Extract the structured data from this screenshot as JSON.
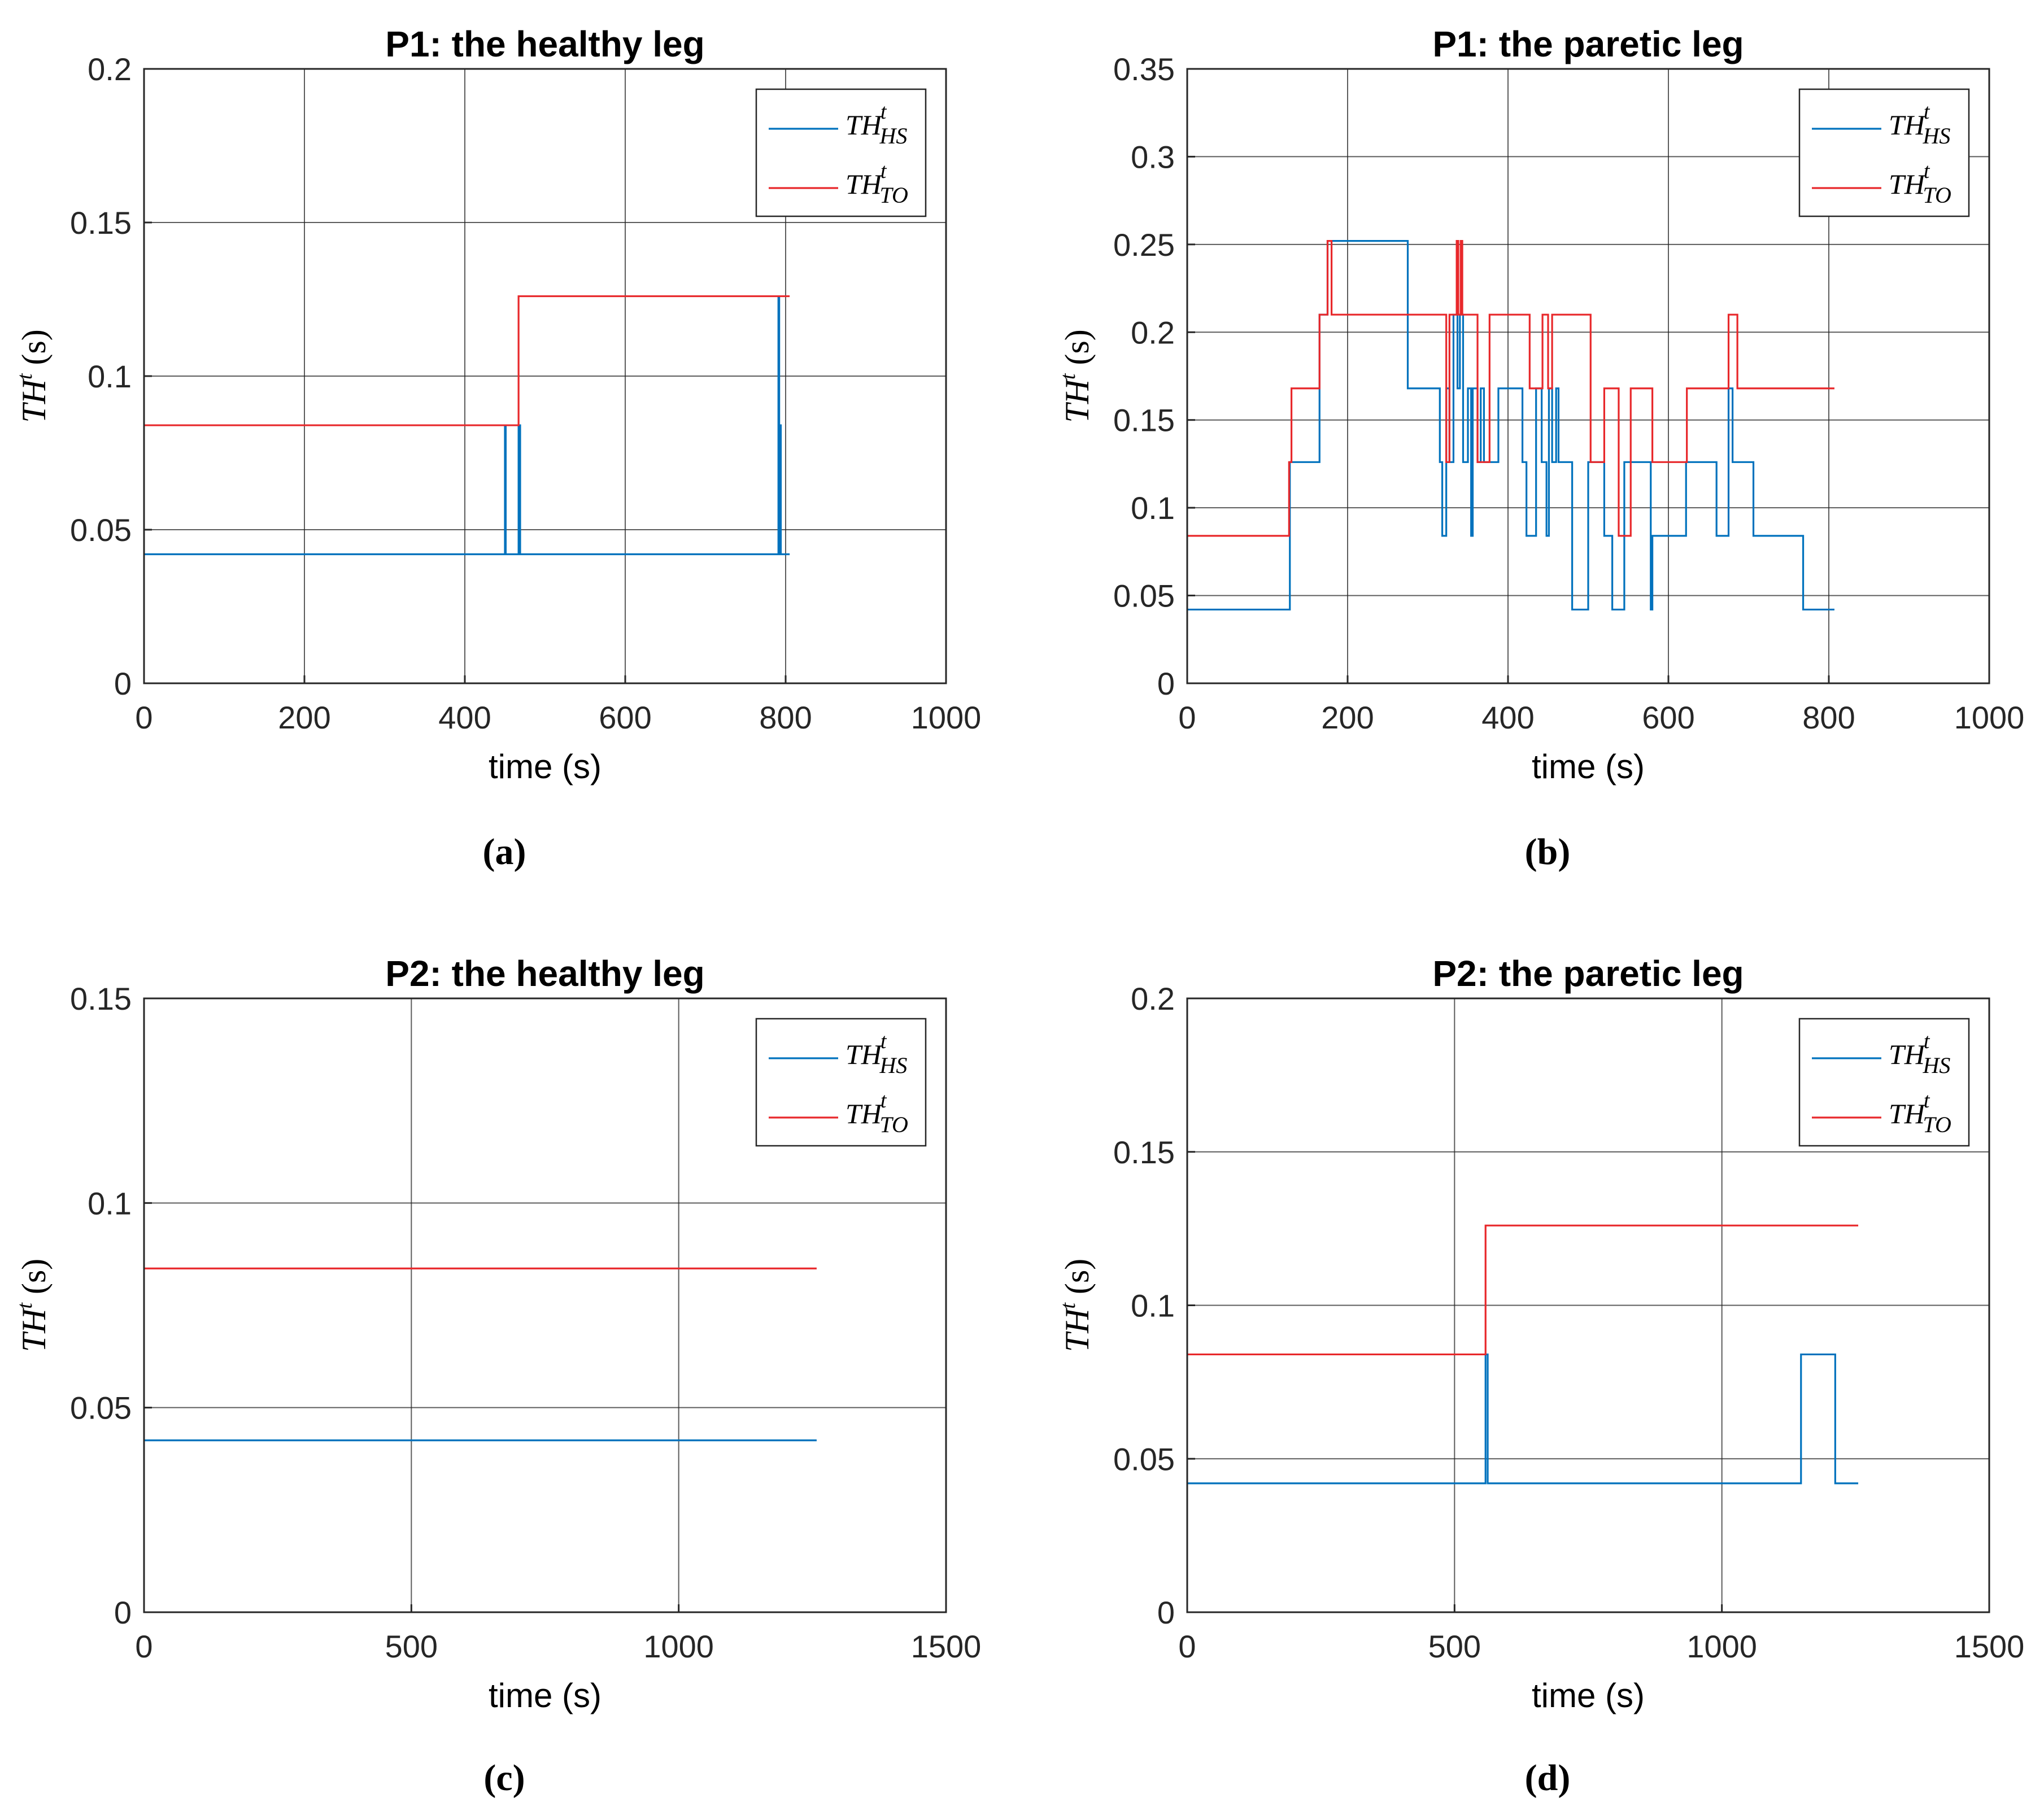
{
  "figure": {
    "captions": [
      "(a)",
      "(b)",
      "(c)",
      "(d)"
    ]
  },
  "chart_data": [
    {
      "type": "line",
      "title": "P1: the healthy leg",
      "xlabel": "time (s)",
      "ylabel": "TH",
      "ylabel_sup": "t",
      "ylabel_unit": "(s)",
      "xlim": [
        0,
        1000
      ],
      "ylim": [
        0,
        0.2
      ],
      "xticks": [
        0,
        200,
        400,
        600,
        800,
        1000
      ],
      "yticks": [
        0,
        0.05,
        0.1,
        0.15,
        0.2
      ],
      "xtick_labels": [
        "0",
        "200",
        "400",
        "600",
        "800",
        "1000"
      ],
      "ytick_labels": [
        "0",
        "0.05",
        "0.1",
        "0.15",
        "0.2"
      ],
      "grid": true,
      "legend_position": "top-right",
      "series": [
        {
          "name_base": "TH",
          "name_sup": "t",
          "name_sub": "HS",
          "color": "#0072BD",
          "points": [
            [
              0,
              0.042
            ],
            [
              450,
              0.042
            ],
            [
              450,
              0.084
            ],
            [
              451,
              0.084
            ],
            [
              451,
              0.042
            ],
            [
              467,
              0.042
            ],
            [
              467,
              0.084
            ],
            [
              469,
              0.084
            ],
            [
              469,
              0.042
            ],
            [
              791,
              0.042
            ],
            [
              791,
              0.126
            ],
            [
              792,
              0.126
            ],
            [
              792,
              0.042
            ],
            [
              793,
              0.042
            ],
            [
              793,
              0.084
            ],
            [
              794,
              0.084
            ],
            [
              794,
              0.042
            ],
            [
              805,
              0.042
            ]
          ]
        },
        {
          "name_base": "TH",
          "name_sup": "t",
          "name_sub": "TO",
          "color": "#E8282B",
          "points": [
            [
              0,
              0.084
            ],
            [
              467,
              0.084
            ],
            [
              467,
              0.126
            ],
            [
              805,
              0.126
            ]
          ]
        }
      ]
    },
    {
      "type": "line",
      "title": "P1: the paretic leg",
      "xlabel": "time (s)",
      "ylabel": "TH",
      "ylabel_sup": "t",
      "ylabel_unit": "(s)",
      "xlim": [
        0,
        1000
      ],
      "ylim": [
        0,
        0.35
      ],
      "xticks": [
        0,
        200,
        400,
        600,
        800,
        1000
      ],
      "yticks": [
        0,
        0.05,
        0.1,
        0.15,
        0.2,
        0.25,
        0.3,
        0.35
      ],
      "xtick_labels": [
        "0",
        "200",
        "400",
        "600",
        "800",
        "1000"
      ],
      "ytick_labels": [
        "0",
        "0.05",
        "0.1",
        "0.15",
        "0.2",
        "0.25",
        "0.3",
        "0.35"
      ],
      "grid": true,
      "legend_position": "top-right",
      "series": [
        {
          "name_base": "TH",
          "name_sup": "t",
          "name_sub": "HS",
          "color": "#0072BD",
          "points": [
            [
              0,
              0.042
            ],
            [
              128,
              0.042
            ],
            [
              128,
              0.126
            ],
            [
              165,
              0.126
            ],
            [
              165,
              0.21
            ],
            [
              175,
              0.21
            ],
            [
              175,
              0.252
            ],
            [
              275,
              0.252
            ],
            [
              275,
              0.168
            ],
            [
              315,
              0.168
            ],
            [
              315,
              0.126
            ],
            [
              318,
              0.126
            ],
            [
              318,
              0.084
            ],
            [
              323,
              0.084
            ],
            [
              323,
              0.168
            ],
            [
              327,
              0.168
            ],
            [
              327,
              0.126
            ],
            [
              332,
              0.126
            ],
            [
              332,
              0.21
            ],
            [
              337,
              0.21
            ],
            [
              337,
              0.168
            ],
            [
              340,
              0.168
            ],
            [
              340,
              0.21
            ],
            [
              344,
              0.21
            ],
            [
              344,
              0.126
            ],
            [
              350,
              0.126
            ],
            [
              350,
              0.168
            ],
            [
              354,
              0.168
            ],
            [
              354,
              0.084
            ],
            [
              356,
              0.084
            ],
            [
              356,
              0.168
            ],
            [
              362,
              0.168
            ],
            [
              362,
              0.126
            ],
            [
              366,
              0.126
            ],
            [
              366,
              0.168
            ],
            [
              370,
              0.168
            ],
            [
              370,
              0.126
            ],
            [
              388,
              0.126
            ],
            [
              388,
              0.168
            ],
            [
              418,
              0.168
            ],
            [
              418,
              0.126
            ],
            [
              423,
              0.126
            ],
            [
              423,
              0.084
            ],
            [
              435,
              0.084
            ],
            [
              435,
              0.168
            ],
            [
              442,
              0.168
            ],
            [
              442,
              0.126
            ],
            [
              448,
              0.126
            ],
            [
              448,
              0.084
            ],
            [
              451,
              0.084
            ],
            [
              451,
              0.168
            ],
            [
              455,
              0.168
            ],
            [
              455,
              0.126
            ],
            [
              460,
              0.126
            ],
            [
              460,
              0.168
            ],
            [
              463,
              0.168
            ],
            [
              463,
              0.126
            ],
            [
              480,
              0.126
            ],
            [
              480,
              0.042
            ],
            [
              500,
              0.042
            ],
            [
              500,
              0.126
            ],
            [
              520,
              0.126
            ],
            [
              520,
              0.084
            ],
            [
              530,
              0.084
            ],
            [
              530,
              0.042
            ],
            [
              545,
              0.042
            ],
            [
              545,
              0.126
            ],
            [
              578,
              0.126
            ],
            [
              578,
              0.042
            ],
            [
              580,
              0.042
            ],
            [
              580,
              0.084
            ],
            [
              622,
              0.084
            ],
            [
              622,
              0.126
            ],
            [
              660,
              0.126
            ],
            [
              660,
              0.084
            ],
            [
              675,
              0.084
            ],
            [
              675,
              0.168
            ],
            [
              680,
              0.168
            ],
            [
              680,
              0.126
            ],
            [
              706,
              0.126
            ],
            [
              706,
              0.084
            ],
            [
              768,
              0.084
            ],
            [
              768,
              0.042
            ],
            [
              807,
              0.042
            ]
          ]
        },
        {
          "name_base": "TH",
          "name_sup": "t",
          "name_sub": "TO",
          "color": "#E8282B",
          "points": [
            [
              0,
              0.084
            ],
            [
              127,
              0.084
            ],
            [
              127,
              0.126
            ],
            [
              130,
              0.126
            ],
            [
              130,
              0.168
            ],
            [
              165,
              0.168
            ],
            [
              165,
              0.21
            ],
            [
              175,
              0.21
            ],
            [
              175,
              0.252
            ],
            [
              180,
              0.252
            ],
            [
              180,
              0.21
            ],
            [
              323,
              0.21
            ],
            [
              323,
              0.126
            ],
            [
              327,
              0.126
            ],
            [
              327,
              0.21
            ],
            [
              336,
              0.21
            ],
            [
              336,
              0.252
            ],
            [
              338,
              0.252
            ],
            [
              338,
              0.21
            ],
            [
              341,
              0.21
            ],
            [
              341,
              0.252
            ],
            [
              343,
              0.252
            ],
            [
              343,
              0.21
            ],
            [
              362,
              0.21
            ],
            [
              362,
              0.126
            ],
            [
              377,
              0.126
            ],
            [
              377,
              0.21
            ],
            [
              427,
              0.21
            ],
            [
              427,
              0.168
            ],
            [
              443,
              0.168
            ],
            [
              443,
              0.21
            ],
            [
              450,
              0.21
            ],
            [
              450,
              0.168
            ],
            [
              455,
              0.168
            ],
            [
              455,
              0.21
            ],
            [
              503,
              0.21
            ],
            [
              503,
              0.126
            ],
            [
              520,
              0.126
            ],
            [
              520,
              0.168
            ],
            [
              538,
              0.168
            ],
            [
              538,
              0.084
            ],
            [
              553,
              0.084
            ],
            [
              553,
              0.168
            ],
            [
              580,
              0.168
            ],
            [
              580,
              0.126
            ],
            [
              623,
              0.126
            ],
            [
              623,
              0.168
            ],
            [
              675,
              0.168
            ],
            [
              675,
              0.21
            ],
            [
              686,
              0.21
            ],
            [
              686,
              0.168
            ],
            [
              807,
              0.168
            ]
          ]
        }
      ]
    },
    {
      "type": "line",
      "title": "P2: the healthy leg",
      "xlabel": "time (s)",
      "ylabel": "TH",
      "ylabel_sup": "t",
      "ylabel_unit": "(s)",
      "xlim": [
        0,
        1500
      ],
      "ylim": [
        0,
        0.15
      ],
      "xticks": [
        0,
        500,
        1000,
        1500
      ],
      "yticks": [
        0,
        0.05,
        0.1,
        0.15
      ],
      "xtick_labels": [
        "0",
        "500",
        "1000",
        "1500"
      ],
      "ytick_labels": [
        "0",
        "0.05",
        "0.1",
        "0.15"
      ],
      "grid": true,
      "legend_position": "top-right",
      "series": [
        {
          "name_base": "TH",
          "name_sup": "t",
          "name_sub": "HS",
          "color": "#0072BD",
          "points": [
            [
              0,
              0.042
            ],
            [
              1258,
              0.042
            ]
          ]
        },
        {
          "name_base": "TH",
          "name_sup": "t",
          "name_sub": "TO",
          "color": "#E8282B",
          "points": [
            [
              0,
              0.084
            ],
            [
              1258,
              0.084
            ]
          ]
        }
      ]
    },
    {
      "type": "line",
      "title": "P2: the paretic leg",
      "xlabel": "time (s)",
      "ylabel": "TH",
      "ylabel_sup": "t",
      "ylabel_unit": "(s)",
      "xlim": [
        0,
        1500
      ],
      "ylim": [
        0,
        0.2
      ],
      "xticks": [
        0,
        500,
        1000,
        1500
      ],
      "yticks": [
        0,
        0.05,
        0.1,
        0.15,
        0.2
      ],
      "xtick_labels": [
        "0",
        "500",
        "1000",
        "1500"
      ],
      "ytick_labels": [
        "0",
        "0.05",
        "0.1",
        "0.15",
        "0.2"
      ],
      "grid": true,
      "legend_position": "top-right",
      "series": [
        {
          "name_base": "TH",
          "name_sup": "t",
          "name_sub": "HS",
          "color": "#0072BD",
          "points": [
            [
              0,
              0.042
            ],
            [
              558,
              0.042
            ],
            [
              558,
              0.084
            ],
            [
              562,
              0.084
            ],
            [
              562,
              0.042
            ],
            [
              1148,
              0.042
            ],
            [
              1148,
              0.084
            ],
            [
              1212,
              0.084
            ],
            [
              1212,
              0.042
            ],
            [
              1255,
              0.042
            ]
          ]
        },
        {
          "name_base": "TH",
          "name_sup": "t",
          "name_sub": "TO",
          "color": "#E8282B",
          "points": [
            [
              0,
              0.084
            ],
            [
              558,
              0.084
            ],
            [
              558,
              0.126
            ],
            [
              1255,
              0.126
            ]
          ]
        }
      ]
    }
  ]
}
